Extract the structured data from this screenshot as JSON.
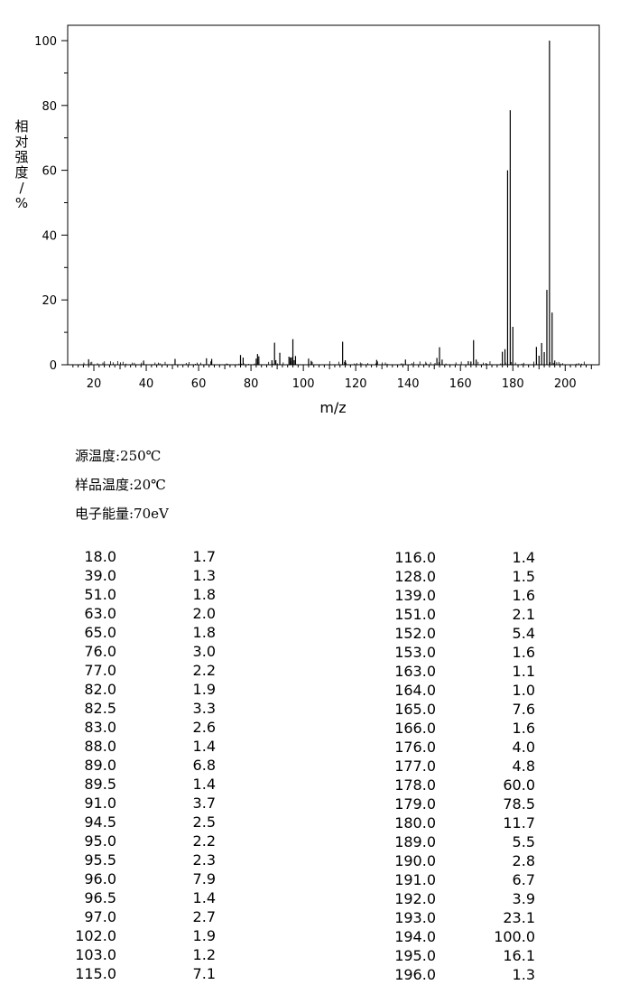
{
  "chart_data": {
    "type": "bar",
    "xlabel": "m/z",
    "ylabel": "相对强度/%",
    "xlim": [
      10,
      213
    ],
    "ylim": [
      0,
      100
    ],
    "xticks": [
      20,
      40,
      60,
      80,
      100,
      120,
      140,
      160,
      180,
      200
    ],
    "yticks": [
      0,
      20,
      40,
      60,
      80,
      100
    ],
    "x": [
      18.0,
      39.0,
      51.0,
      63.0,
      65.0,
      76.0,
      77.0,
      82.0,
      82.5,
      83.0,
      88.0,
      89.0,
      89.5,
      91.0,
      94.5,
      95.0,
      95.5,
      96.0,
      96.5,
      97.0,
      102.0,
      103.0,
      115.0,
      116.0,
      128.0,
      139.0,
      151.0,
      152.0,
      153.0,
      163.0,
      164.0,
      165.0,
      166.0,
      176.0,
      177.0,
      178.0,
      179.0,
      180.0,
      189.0,
      190.0,
      191.0,
      192.0,
      193.0,
      194.0,
      195.0,
      196.0
    ],
    "values": [
      1.7,
      1.3,
      1.8,
      2.0,
      1.8,
      3.0,
      2.2,
      1.9,
      3.3,
      2.6,
      1.4,
      6.8,
      1.4,
      3.7,
      2.5,
      2.2,
      2.3,
      7.9,
      1.4,
      2.7,
      1.9,
      1.2,
      7.1,
      1.4,
      1.5,
      1.6,
      2.1,
      5.4,
      1.6,
      1.1,
      1.0,
      7.6,
      1.6,
      4.0,
      4.8,
      60.0,
      78.5,
      11.7,
      5.5,
      2.8,
      6.7,
      3.9,
      23.1,
      100.0,
      16.1,
      1.3
    ],
    "grid": false
  },
  "conditions": [
    {
      "label": "源温度:250℃"
    },
    {
      "label": "样品温度:20℃"
    },
    {
      "label": "电子能量:70eV"
    }
  ],
  "peak_table": {
    "left": [
      [
        "18.0",
        "1.7"
      ],
      [
        "39.0",
        "1.3"
      ],
      [
        "51.0",
        "1.8"
      ],
      [
        "63.0",
        "2.0"
      ],
      [
        "65.0",
        "1.8"
      ],
      [
        "76.0",
        "3.0"
      ],
      [
        "77.0",
        "2.2"
      ],
      [
        "82.0",
        "1.9"
      ],
      [
        "82.5",
        "3.3"
      ],
      [
        "83.0",
        "2.6"
      ],
      [
        "88.0",
        "1.4"
      ],
      [
        "89.0",
        "6.8"
      ],
      [
        "89.5",
        "1.4"
      ],
      [
        "91.0",
        "3.7"
      ],
      [
        "94.5",
        "2.5"
      ],
      [
        "95.0",
        "2.2"
      ],
      [
        "95.5",
        "2.3"
      ],
      [
        "96.0",
        "7.9"
      ],
      [
        "96.5",
        "1.4"
      ],
      [
        "97.0",
        "2.7"
      ],
      [
        "102.0",
        "1.9"
      ],
      [
        "103.0",
        "1.2"
      ],
      [
        "115.0",
        "7.1"
      ]
    ],
    "right": [
      [
        "116.0",
        "1.4"
      ],
      [
        "128.0",
        "1.5"
      ],
      [
        "139.0",
        "1.6"
      ],
      [
        "151.0",
        "2.1"
      ],
      [
        "152.0",
        "5.4"
      ],
      [
        "153.0",
        "1.6"
      ],
      [
        "163.0",
        "1.1"
      ],
      [
        "164.0",
        "1.0"
      ],
      [
        "165.0",
        "7.6"
      ],
      [
        "166.0",
        "1.6"
      ],
      [
        "176.0",
        "4.0"
      ],
      [
        "177.0",
        "4.8"
      ],
      [
        "178.0",
        "60.0"
      ],
      [
        "179.0",
        "78.5"
      ],
      [
        "180.0",
        "11.7"
      ],
      [
        "189.0",
        "5.5"
      ],
      [
        "190.0",
        "2.8"
      ],
      [
        "191.0",
        "6.7"
      ],
      [
        "192.0",
        "3.9"
      ],
      [
        "193.0",
        "23.1"
      ],
      [
        "194.0",
        "100.0"
      ],
      [
        "195.0",
        "16.1"
      ],
      [
        "196.0",
        "1.3"
      ]
    ]
  }
}
